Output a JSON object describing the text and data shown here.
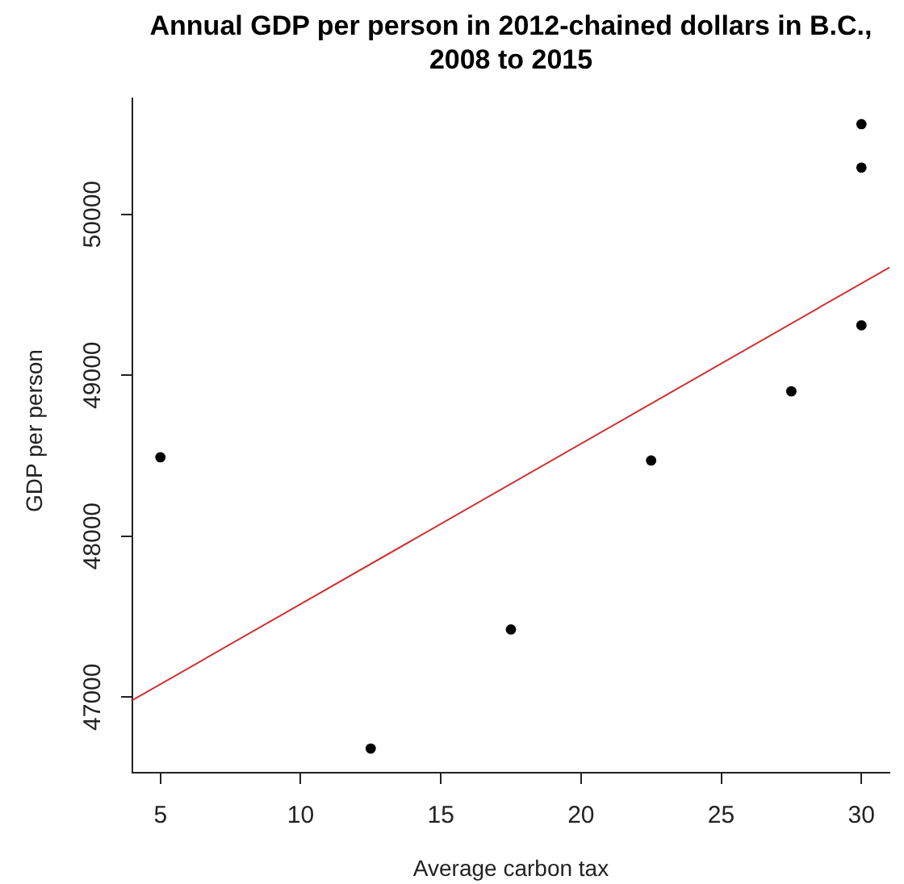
{
  "chart_data": {
    "type": "scatter",
    "title": "Annual GDP per person in 2012-chained dollars in B.C., 2008 to 2015",
    "xlabel": "Average carbon tax",
    "ylabel": "GDP per person",
    "series": [
      {
        "type": "scatter",
        "color": "#000000",
        "x": [
          5,
          12.5,
          17.5,
          22.5,
          27.5,
          30,
          30,
          30
        ],
        "values": [
          48490,
          46680,
          47420,
          48470,
          48900,
          49310,
          50290,
          50560
        ]
      },
      {
        "type": "line",
        "color": "#d03030",
        "x": [
          4,
          31
        ],
        "values": [
          46980,
          49670
        ],
        "marker": "none",
        "line_style": "solid"
      }
    ],
    "xlim": [
      4,
      31
    ],
    "ylim": [
      46530,
      50720
    ],
    "xticks": [
      5,
      10,
      15,
      20,
      25,
      30
    ],
    "yticks": [
      47000,
      48000,
      49000,
      50000
    ],
    "marker": "circle",
    "grid": false,
    "legend": false
  }
}
